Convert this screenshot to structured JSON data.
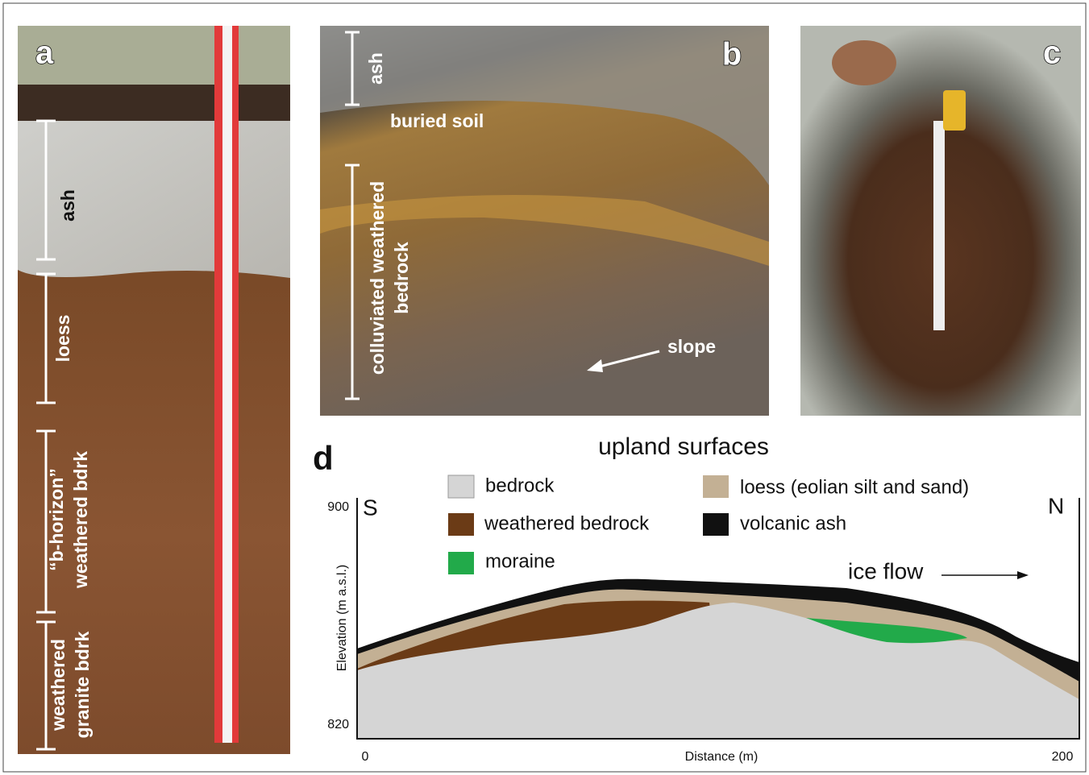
{
  "panel_a": {
    "label": "a",
    "ash": "ash",
    "loess": "loess",
    "b_horizon": [
      "“b-horizon”",
      "weathered bdrk"
    ],
    "granite": [
      "weathered",
      "granite bdrk"
    ]
  },
  "panel_b": {
    "label": "b",
    "ash": "ash",
    "buried_soil": "buried soil",
    "colluviated": [
      "colluviated weathered",
      "bedrock"
    ],
    "slope": "slope"
  },
  "panel_c": {
    "label": "c"
  },
  "panel_d": {
    "label": "d",
    "title": "upland surfaces",
    "legend": [
      "bedrock",
      "weathered bedrock",
      "moraine",
      "loess (eolian silt and sand)",
      "volcanic ash"
    ],
    "south": "S",
    "north": "N",
    "ice_flow": "ice flow",
    "y_axis_label": "Elevation (m a.s.l.)",
    "y_ticks": [
      "900",
      "820"
    ],
    "x_ticks": [
      "0",
      "200"
    ],
    "x_axis_label": "Distance (m)"
  }
}
